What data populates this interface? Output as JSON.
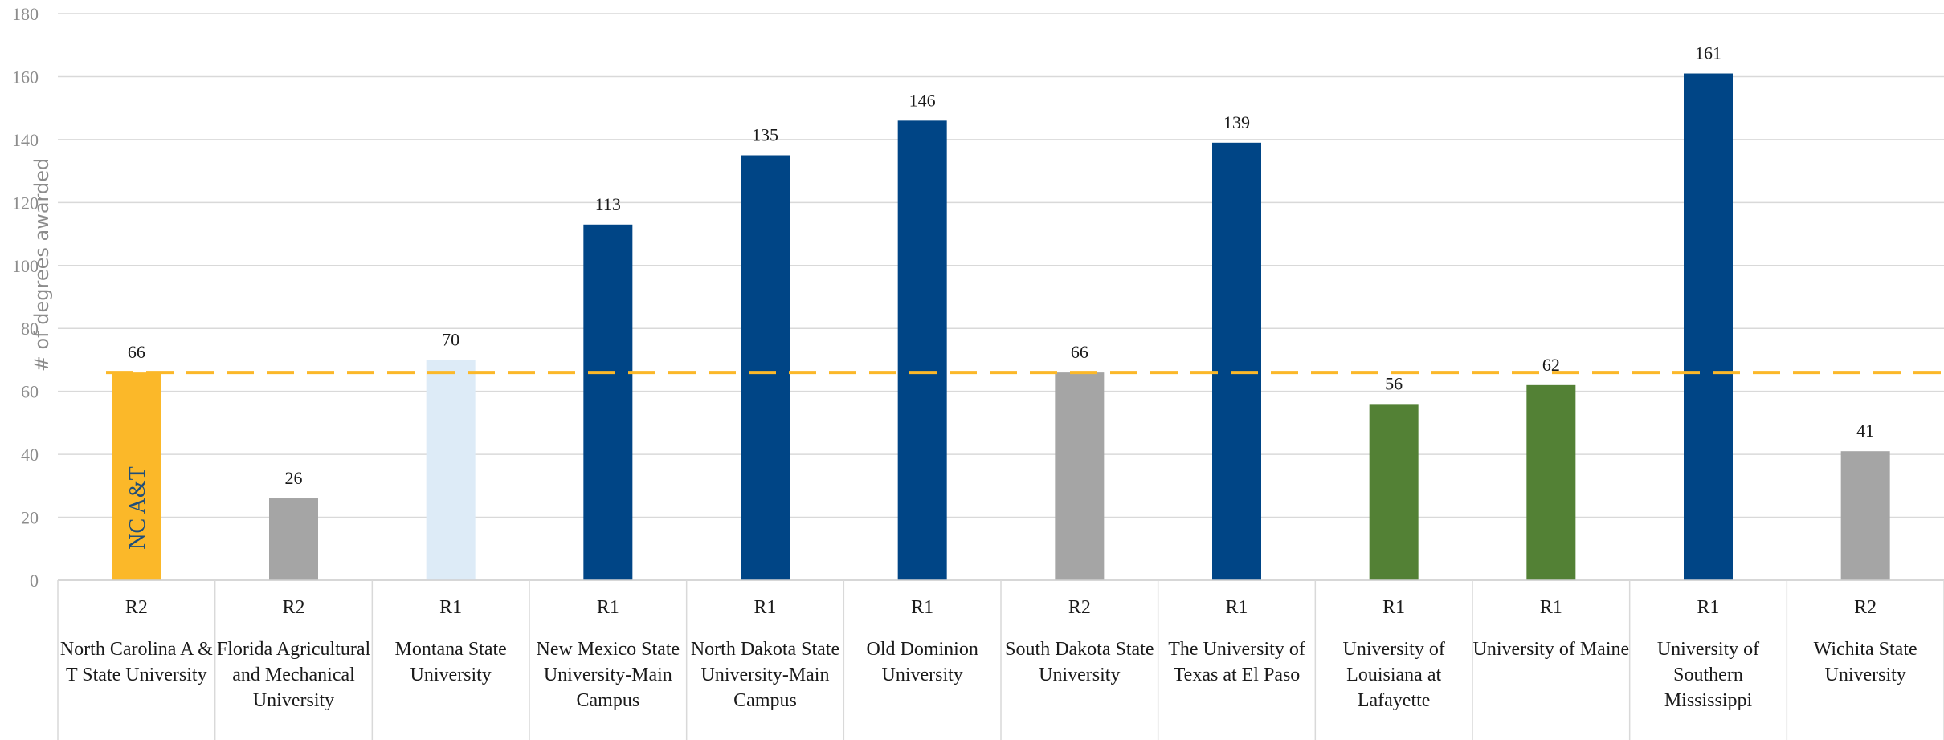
{
  "chart_data": {
    "type": "bar",
    "ylabel": "# of degrees awarded",
    "ylim": [
      0,
      180
    ],
    "yticks": [
      0,
      20,
      40,
      60,
      80,
      100,
      120,
      140,
      160,
      180
    ],
    "grid": true,
    "reference_line": {
      "value": 66,
      "color": "#FBB829",
      "style": "dashed"
    },
    "bar_inner_label": {
      "index": 0,
      "text": "NC A&T",
      "color": "#1f4e79"
    },
    "categories": [
      {
        "group": "R2",
        "name": "North Carolina A & T State University",
        "value": 66,
        "color": "#FBB829"
      },
      {
        "group": "R2",
        "name": "Florida Agricultural and Mechanical University",
        "value": 26,
        "color": "#A5A5A5"
      },
      {
        "group": "R1",
        "name": "Montana State University",
        "value": 70,
        "color": "#DDEBF7"
      },
      {
        "group": "R1",
        "name": "New Mexico State University-Main Campus",
        "value": 113,
        "color": "#004586"
      },
      {
        "group": "R1",
        "name": "North Dakota State University-Main Campus",
        "value": 135,
        "color": "#004586"
      },
      {
        "group": "R1",
        "name": "Old Dominion University",
        "value": 146,
        "color": "#004586"
      },
      {
        "group": "R2",
        "name": "South Dakota State University",
        "value": 66,
        "color": "#A5A5A5"
      },
      {
        "group": "R1",
        "name": "The University of Texas at El Paso",
        "value": 139,
        "color": "#004586"
      },
      {
        "group": "R1",
        "name": "University of Louisiana at Lafayette",
        "value": 56,
        "color": "#538135"
      },
      {
        "group": "R1",
        "name": "University of Maine",
        "value": 62,
        "color": "#538135"
      },
      {
        "group": "R1",
        "name": "University of Southern Mississippi",
        "value": 161,
        "color": "#004586"
      },
      {
        "group": "R2",
        "name": "Wichita State University",
        "value": 41,
        "color": "#A5A5A5"
      }
    ]
  }
}
